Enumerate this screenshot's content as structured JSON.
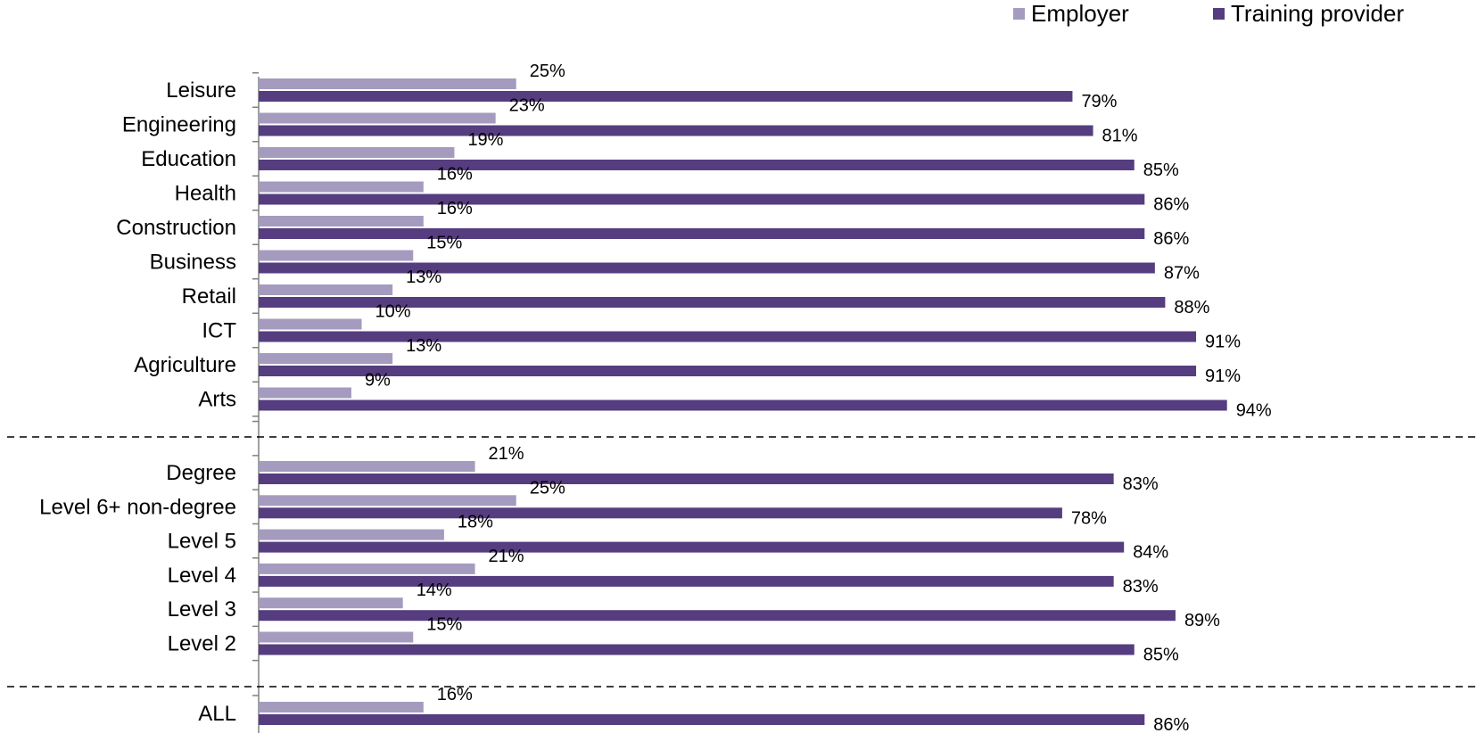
{
  "chart_data": {
    "type": "bar",
    "orientation": "horizontal",
    "categories": [
      "Leisure",
      "Engineering",
      "Education",
      "Health",
      "Construction",
      "Business",
      "Retail",
      "ICT",
      "Agriculture",
      "Arts",
      "Degree",
      "Level 6+ non-degree",
      "Level 5",
      "Level 4",
      "Level 3",
      "Level 2",
      "ALL"
    ],
    "series": [
      {
        "name": "Employer",
        "color": "#a59bbf",
        "values": [
          25,
          23,
          19,
          16,
          16,
          15,
          13,
          10,
          13,
          9,
          21,
          25,
          18,
          21,
          14,
          15,
          16
        ],
        "labels": [
          "25%",
          "23%",
          "19%",
          "16%",
          "16%",
          "15%",
          "13%",
          "10%",
          "13%",
          "9%",
          "21%",
          "25%",
          "18%",
          "21%",
          "14%",
          "15%",
          "16%"
        ]
      },
      {
        "name": "Training provider",
        "color": "#553d7f",
        "values": [
          79,
          81,
          85,
          86,
          86,
          87,
          88,
          91,
          91,
          94,
          83,
          78,
          84,
          83,
          89,
          85,
          86
        ],
        "labels": [
          "79%",
          "81%",
          "85%",
          "86%",
          "86%",
          "87%",
          "88%",
          "91%",
          "91%",
          "94%",
          "83%",
          "78%",
          "84%",
          "83%",
          "89%",
          "85%",
          "86%"
        ]
      }
    ],
    "groups": [
      {
        "start": 0,
        "end": 9
      },
      {
        "start": 10,
        "end": 15
      },
      {
        "start": 16,
        "end": 16
      }
    ],
    "xlim": [
      0,
      100
    ],
    "title": "",
    "xlabel": "",
    "ylabel": "",
    "grid": false,
    "legend_position": "top-right"
  }
}
